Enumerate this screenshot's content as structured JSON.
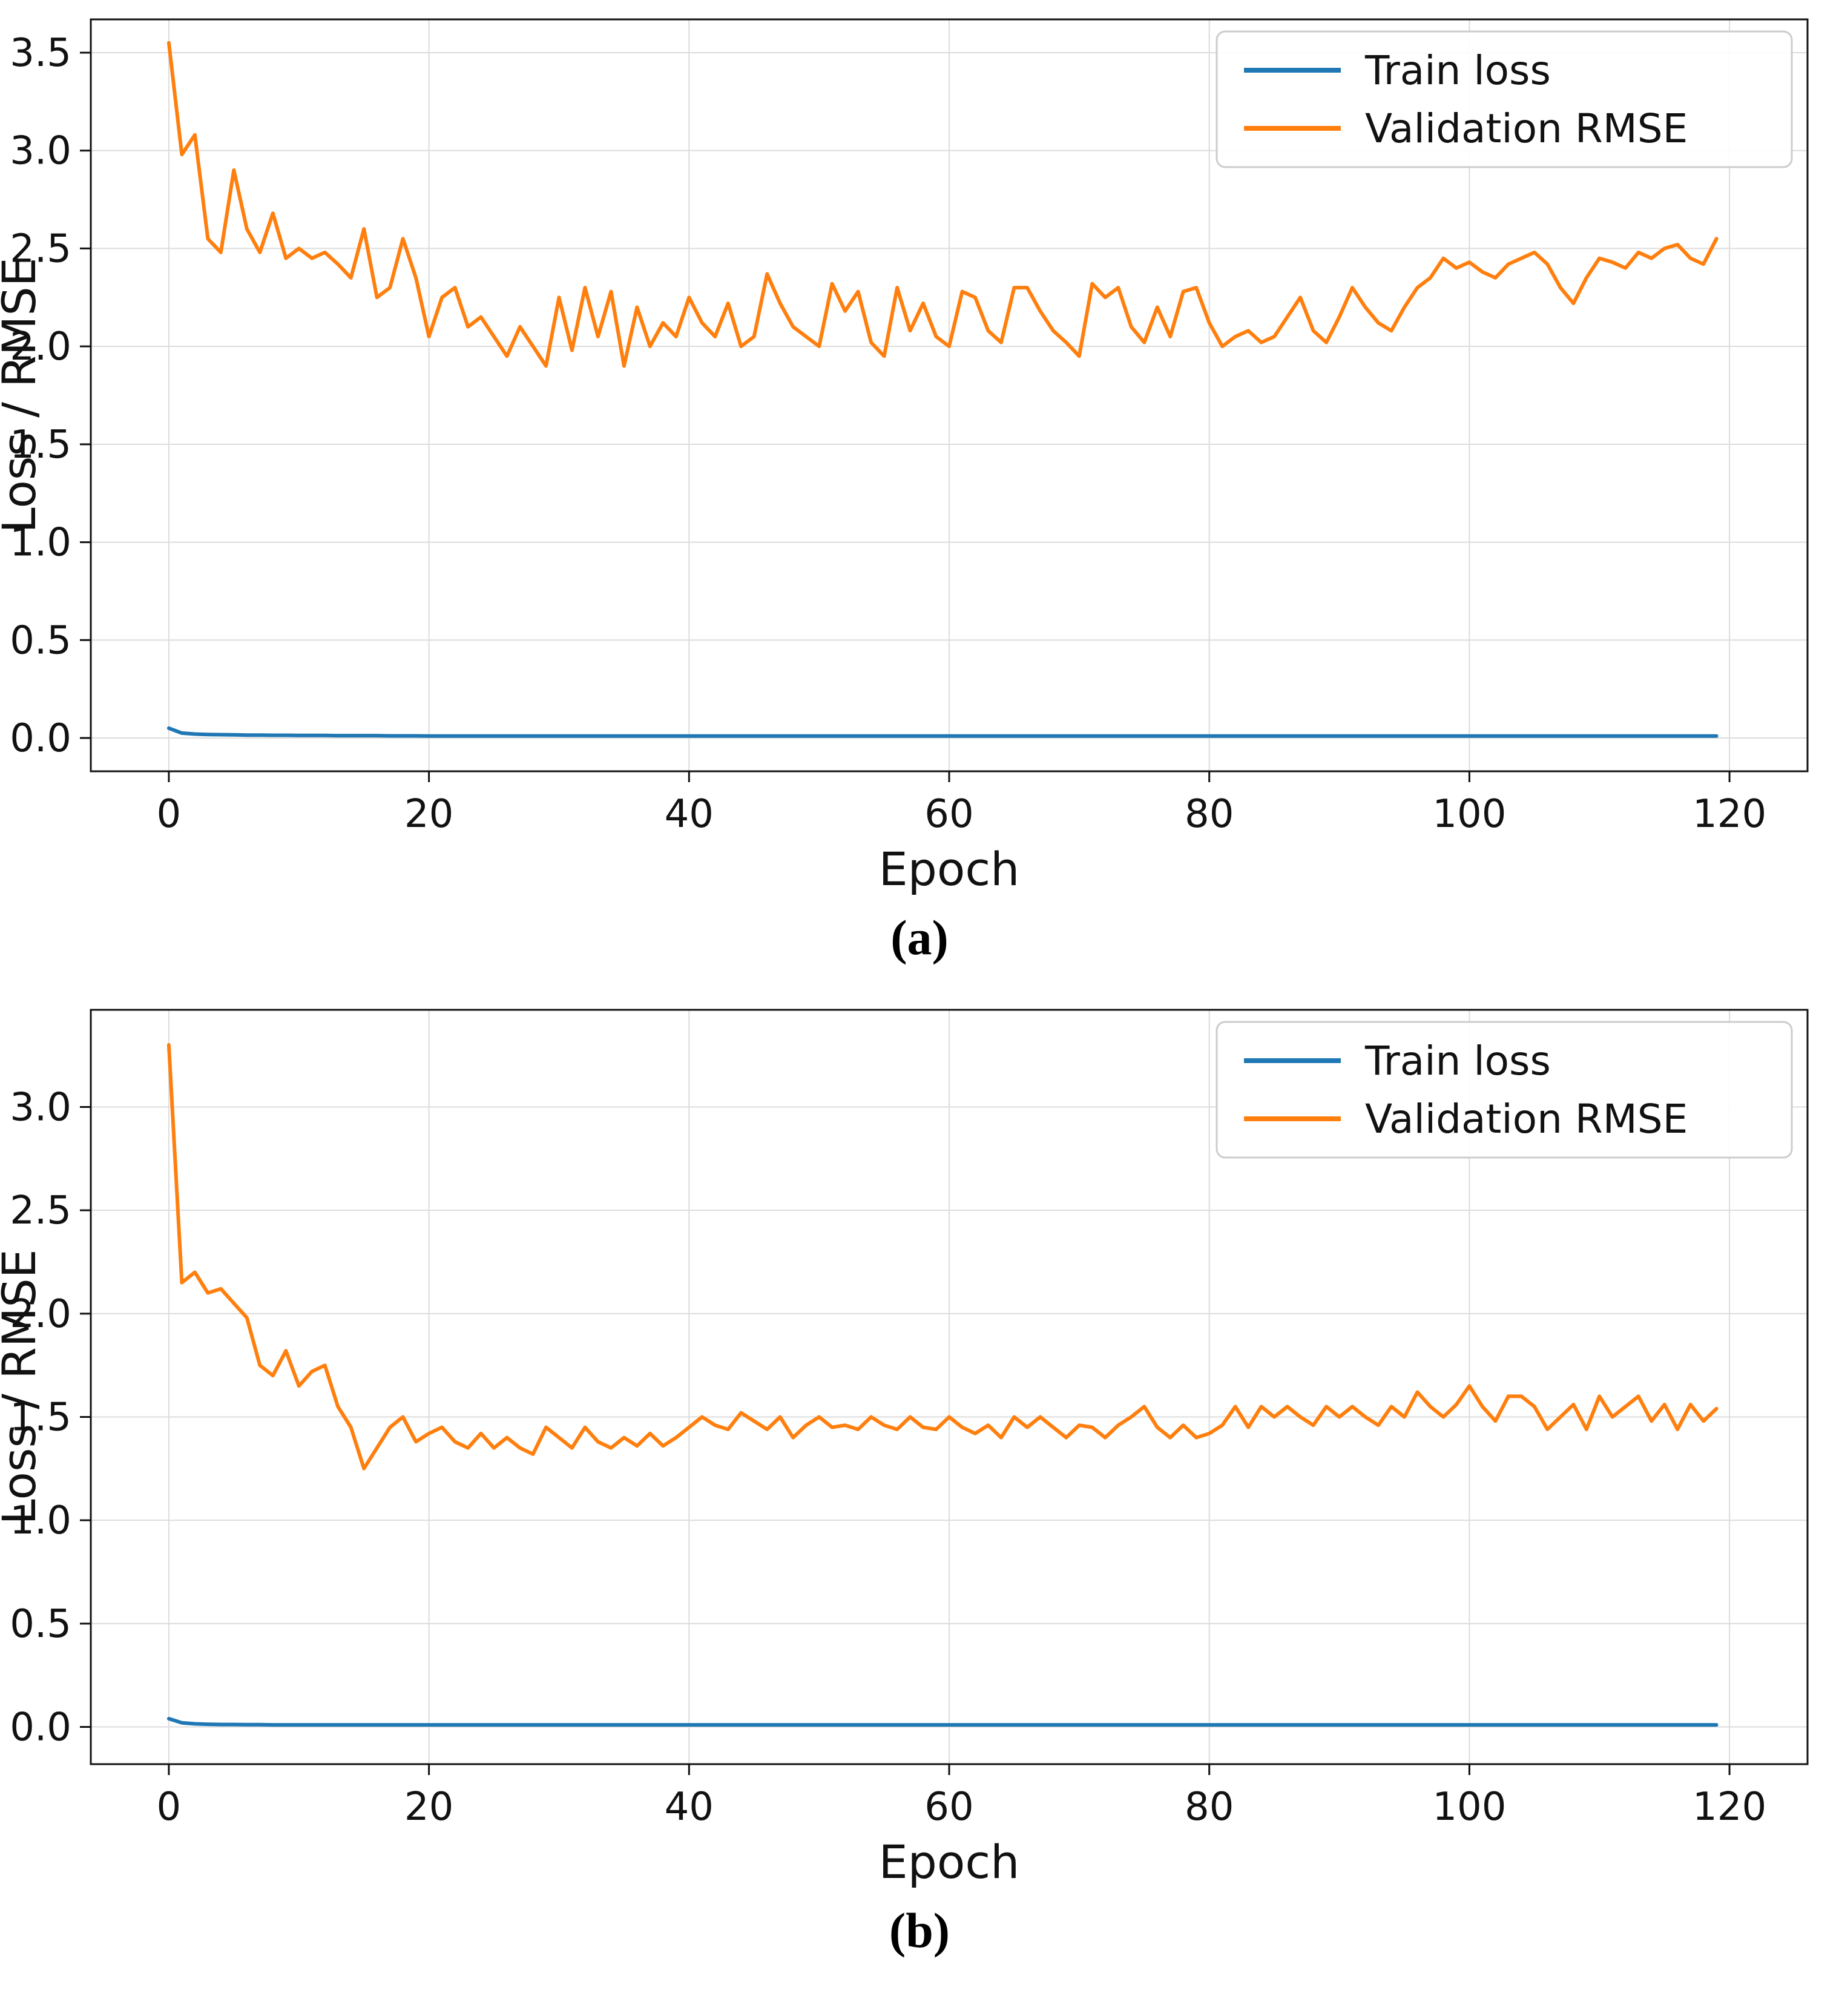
{
  "captions": {
    "a": "(a)",
    "b": "(b)"
  },
  "colors": {
    "train": "#1f77b4",
    "validation": "#ff7f0e",
    "grid": "#dcdcdc",
    "axis": "#111111",
    "legend_border": "#cccccc",
    "legend_fill": "#ffffff"
  },
  "chart_data": [
    {
      "type": "line",
      "title": "",
      "xlabel": "Epoch",
      "ylabel": "Loss / RMSE",
      "xlim": [
        -6,
        126
      ],
      "ylim": [
        -0.17,
        3.67
      ],
      "xticks": [
        0,
        20,
        40,
        60,
        80,
        100,
        120
      ],
      "yticks": [
        0.0,
        0.5,
        1.0,
        1.5,
        2.0,
        2.5,
        3.0,
        3.5
      ],
      "grid": true,
      "legend_position": "upper right",
      "series": [
        {
          "name": "Train loss",
          "color": "#1f77b4",
          "values": [
            0.05,
            0.025,
            0.02,
            0.018,
            0.017,
            0.016,
            0.015,
            0.015,
            0.014,
            0.014,
            0.013,
            0.013,
            0.013,
            0.012,
            0.012,
            0.012,
            0.012,
            0.011,
            0.011,
            0.011,
            0.01,
            0.01,
            0.01,
            0.01,
            0.01,
            0.01,
            0.01,
            0.01,
            0.01,
            0.01,
            0.01,
            0.01,
            0.01,
            0.01,
            0.01,
            0.01,
            0.01,
            0.01,
            0.01,
            0.01,
            0.01,
            0.01,
            0.01,
            0.01,
            0.01,
            0.01,
            0.01,
            0.01,
            0.01,
            0.01,
            0.01,
            0.01,
            0.01,
            0.01,
            0.01,
            0.01,
            0.01,
            0.01,
            0.01,
            0.01,
            0.01,
            0.01,
            0.01,
            0.01,
            0.01,
            0.01,
            0.01,
            0.01,
            0.01,
            0.01,
            0.01,
            0.01,
            0.01,
            0.01,
            0.01,
            0.01,
            0.01,
            0.01,
            0.01,
            0.01,
            0.01,
            0.01,
            0.01,
            0.01,
            0.01,
            0.01,
            0.01,
            0.01,
            0.01,
            0.01,
            0.01,
            0.01,
            0.01,
            0.01,
            0.01,
            0.01,
            0.01,
            0.01,
            0.01,
            0.01,
            0.01,
            0.01,
            0.01,
            0.01,
            0.01,
            0.01,
            0.01,
            0.01,
            0.01,
            0.01,
            0.01,
            0.01,
            0.01,
            0.01,
            0.01,
            0.01,
            0.01,
            0.01,
            0.01,
            0.01
          ]
        },
        {
          "name": "Validation RMSE",
          "color": "#ff7f0e",
          "values": [
            3.55,
            2.98,
            3.08,
            2.55,
            2.48,
            2.9,
            2.6,
            2.48,
            2.68,
            2.45,
            2.5,
            2.45,
            2.48,
            2.42,
            2.35,
            2.6,
            2.25,
            2.3,
            2.55,
            2.35,
            2.05,
            2.25,
            2.3,
            2.1,
            2.15,
            2.05,
            1.95,
            2.1,
            2.0,
            1.9,
            2.25,
            1.98,
            2.3,
            2.05,
            2.28,
            1.9,
            2.2,
            2.0,
            2.12,
            2.05,
            2.25,
            2.12,
            2.05,
            2.22,
            2.0,
            2.05,
            2.37,
            2.22,
            2.1,
            2.05,
            2.0,
            2.32,
            2.18,
            2.28,
            2.02,
            1.95,
            2.3,
            2.08,
            2.22,
            2.05,
            2.0,
            2.28,
            2.25,
            2.08,
            2.02,
            2.3,
            2.3,
            2.18,
            2.08,
            2.02,
            1.95,
            2.32,
            2.25,
            2.3,
            2.1,
            2.02,
            2.2,
            2.05,
            2.28,
            2.3,
            2.12,
            2.0,
            2.05,
            2.08,
            2.02,
            2.05,
            2.15,
            2.25,
            2.08,
            2.02,
            2.15,
            2.3,
            2.2,
            2.12,
            2.08,
            2.2,
            2.3,
            2.35,
            2.45,
            2.4,
            2.43,
            2.38,
            2.35,
            2.42,
            2.45,
            2.48,
            2.42,
            2.3,
            2.22,
            2.35,
            2.45,
            2.43,
            2.4,
            2.48,
            2.45,
            2.5,
            2.52,
            2.45,
            2.42,
            2.55
          ]
        }
      ]
    },
    {
      "type": "line",
      "title": "",
      "xlabel": "Epoch",
      "ylabel": "Loss / RMSE",
      "xlim": [
        -6,
        126
      ],
      "ylim": [
        -0.18,
        3.47
      ],
      "xticks": [
        0,
        20,
        40,
        60,
        80,
        100,
        120
      ],
      "yticks": [
        0.0,
        0.5,
        1.0,
        1.5,
        2.0,
        2.5,
        3.0
      ],
      "grid": true,
      "legend_position": "upper right",
      "series": [
        {
          "name": "Train loss",
          "color": "#1f77b4",
          "values": [
            0.04,
            0.02,
            0.015,
            0.013,
            0.012,
            0.012,
            0.011,
            0.011,
            0.01,
            0.01,
            0.01,
            0.01,
            0.01,
            0.01,
            0.01,
            0.01,
            0.01,
            0.01,
            0.01,
            0.01,
            0.01,
            0.01,
            0.01,
            0.01,
            0.01,
            0.01,
            0.01,
            0.01,
            0.01,
            0.01,
            0.01,
            0.01,
            0.01,
            0.01,
            0.01,
            0.01,
            0.01,
            0.01,
            0.01,
            0.01,
            0.01,
            0.01,
            0.01,
            0.01,
            0.01,
            0.01,
            0.01,
            0.01,
            0.01,
            0.01,
            0.01,
            0.01,
            0.01,
            0.01,
            0.01,
            0.01,
            0.01,
            0.01,
            0.01,
            0.01,
            0.01,
            0.01,
            0.01,
            0.01,
            0.01,
            0.01,
            0.01,
            0.01,
            0.01,
            0.01,
            0.01,
            0.01,
            0.01,
            0.01,
            0.01,
            0.01,
            0.01,
            0.01,
            0.01,
            0.01,
            0.01,
            0.01,
            0.01,
            0.01,
            0.01,
            0.01,
            0.01,
            0.01,
            0.01,
            0.01,
            0.01,
            0.01,
            0.01,
            0.01,
            0.01,
            0.01,
            0.01,
            0.01,
            0.01,
            0.01,
            0.01,
            0.01,
            0.01,
            0.01,
            0.01,
            0.01,
            0.01,
            0.01,
            0.01,
            0.01,
            0.01,
            0.01,
            0.01,
            0.01,
            0.01,
            0.01,
            0.01,
            0.01,
            0.01,
            0.01
          ]
        },
        {
          "name": "Validation RMSE",
          "color": "#ff7f0e",
          "values": [
            3.3,
            2.15,
            2.2,
            2.1,
            2.12,
            2.05,
            1.98,
            1.75,
            1.7,
            1.82,
            1.65,
            1.72,
            1.75,
            1.55,
            1.45,
            1.25,
            1.35,
            1.45,
            1.5,
            1.38,
            1.42,
            1.45,
            1.38,
            1.35,
            1.42,
            1.35,
            1.4,
            1.35,
            1.32,
            1.45,
            1.4,
            1.35,
            1.45,
            1.38,
            1.35,
            1.4,
            1.36,
            1.42,
            1.36,
            1.4,
            1.45,
            1.5,
            1.46,
            1.44,
            1.52,
            1.48,
            1.44,
            1.5,
            1.4,
            1.46,
            1.5,
            1.45,
            1.46,
            1.44,
            1.5,
            1.46,
            1.44,
            1.5,
            1.45,
            1.44,
            1.5,
            1.45,
            1.42,
            1.46,
            1.4,
            1.5,
            1.45,
            1.5,
            1.45,
            1.4,
            1.46,
            1.45,
            1.4,
            1.46,
            1.5,
            1.55,
            1.45,
            1.4,
            1.46,
            1.4,
            1.42,
            1.46,
            1.55,
            1.45,
            1.55,
            1.5,
            1.55,
            1.5,
            1.46,
            1.55,
            1.5,
            1.55,
            1.5,
            1.46,
            1.55,
            1.5,
            1.62,
            1.55,
            1.5,
            1.56,
            1.65,
            1.55,
            1.48,
            1.6,
            1.6,
            1.55,
            1.44,
            1.5,
            1.56,
            1.44,
            1.6,
            1.5,
            1.55,
            1.6,
            1.48,
            1.56,
            1.44,
            1.56,
            1.48,
            1.54
          ]
        }
      ]
    }
  ]
}
